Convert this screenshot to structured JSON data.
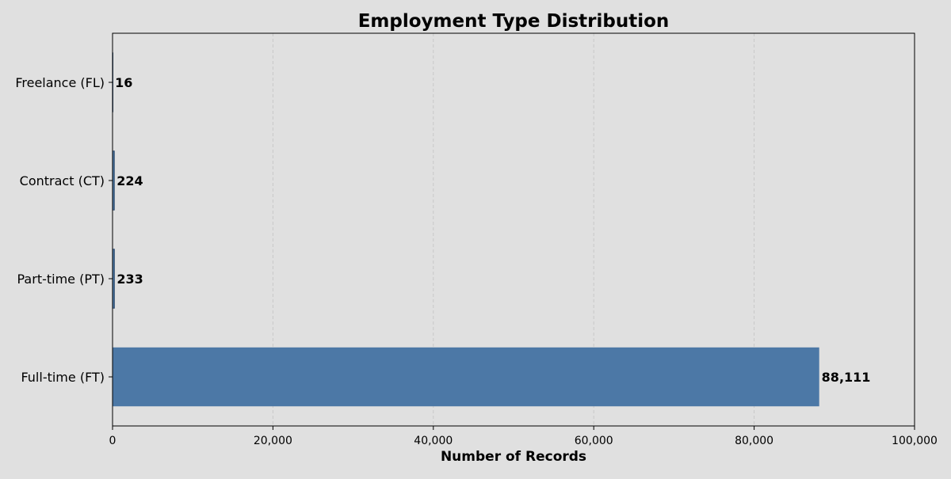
{
  "chart_data": {
    "type": "bar",
    "orientation": "horizontal",
    "title": "Employment Type Distribution",
    "xlabel": "Number of Records",
    "ylabel": "",
    "categories": [
      "Full-time (FT)",
      "Part-time (PT)",
      "Contract (CT)",
      "Freelance (FL)"
    ],
    "values": [
      88111,
      233,
      224,
      16
    ],
    "value_labels": [
      "88,111",
      "233",
      "224",
      "16"
    ],
    "xlim": [
      0,
      100000
    ],
    "xticks": [
      0,
      20000,
      40000,
      60000,
      80000,
      100000
    ],
    "xtick_labels": [
      "0",
      "20,000",
      "40,000",
      "60,000",
      "80,000",
      "100,000"
    ],
    "grid": "vertical dashed",
    "legend": "none",
    "bar_color": "#4c78a6",
    "background_color": "#e0e0e0"
  }
}
